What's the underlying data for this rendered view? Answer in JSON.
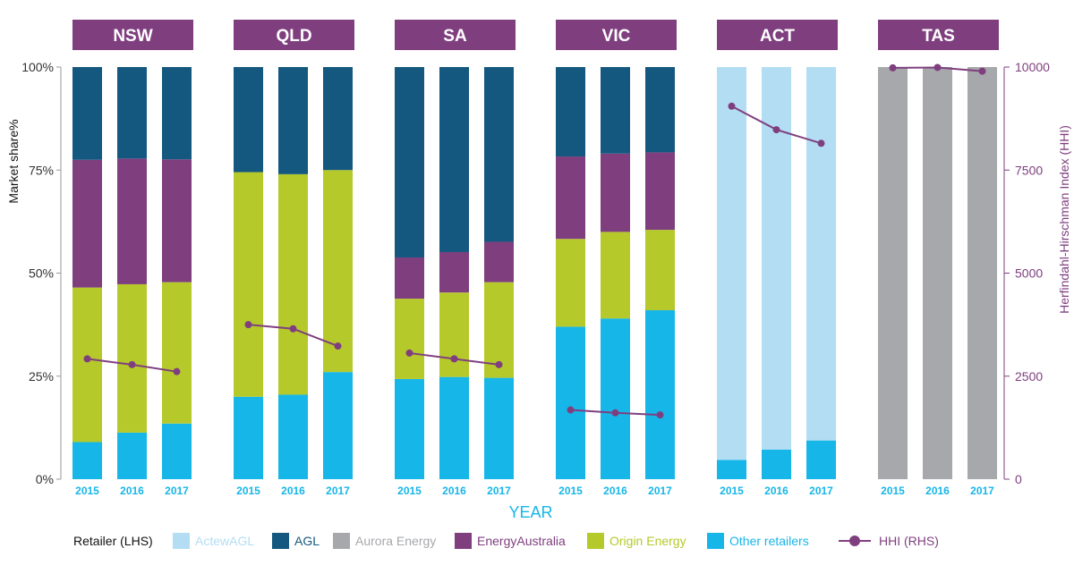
{
  "chart_data": {
    "type": "bar",
    "stacked": true,
    "xlabel": "YEAR",
    "ylabel_left": "Market share%",
    "ylabel_right": "Herfindahl-Hirschman Index (HHI)",
    "ylim_left": [
      0,
      100
    ],
    "ylim_right": [
      0,
      10000
    ],
    "yticks_left": [
      "0%",
      "25%",
      "50%",
      "75%",
      "100%"
    ],
    "yticks_right": [
      "0",
      "2500",
      "5000",
      "7500",
      "10000"
    ],
    "years": [
      "2015",
      "2016",
      "2017"
    ],
    "legend_title": "Retailer (LHS)",
    "series_order": [
      "Other retailers",
      "Origin Energy",
      "EnergyAustralia",
      "AGL",
      "ActewAGL",
      "Aurora Energy"
    ],
    "colors": {
      "ActewAGL": "#b3ddf3",
      "AGL": "#14587f",
      "Aurora Energy": "#a7a8ab",
      "EnergyAustralia": "#7f3f7f",
      "Origin Energy": "#b6c92b",
      "Other retailers": "#17b6e8",
      "HHI": "#7f3f7f",
      "panel_header": "#7f3f7f",
      "axis_label": "#17b6e8"
    },
    "legend": [
      {
        "label": "ActewAGL",
        "type": "box"
      },
      {
        "label": "AGL",
        "type": "box"
      },
      {
        "label": "Aurora Energy",
        "type": "box"
      },
      {
        "label": "EnergyAustralia",
        "type": "box"
      },
      {
        "label": "Origin Energy",
        "type": "box"
      },
      {
        "label": "Other retailers",
        "type": "box"
      },
      {
        "label": "HHI (RHS)",
        "type": "line",
        "key": "HHI"
      }
    ],
    "panels": [
      {
        "name": "NSW",
        "stacks": [
          {
            "Other retailers": 9,
            "Origin Energy": 37.5,
            "EnergyAustralia": 31,
            "AGL": 22.5
          },
          {
            "Other retailers": 11.3,
            "Origin Energy": 36,
            "EnergyAustralia": 30.5,
            "AGL": 22.2
          },
          {
            "Other retailers": 13.5,
            "Origin Energy": 34.3,
            "EnergyAustralia": 29.8,
            "AGL": 22.4
          }
        ],
        "hhi": [
          2920,
          2780,
          2610
        ]
      },
      {
        "name": "QLD",
        "stacks": [
          {
            "Other retailers": 20,
            "Origin Energy": 54.5,
            "AGL": 25.5
          },
          {
            "Other retailers": 20.5,
            "Origin Energy": 53.5,
            "AGL": 26
          },
          {
            "Other retailers": 26,
            "Origin Energy": 49,
            "AGL": 25
          }
        ],
        "hhi": [
          3750,
          3650,
          3230
        ]
      },
      {
        "name": "SA",
        "stacks": [
          {
            "Other retailers": 24.3,
            "Origin Energy": 19.5,
            "EnergyAustralia": 10,
            "AGL": 46.2
          },
          {
            "Other retailers": 24.8,
            "Origin Energy": 20.5,
            "EnergyAustralia": 9.8,
            "AGL": 44.9
          },
          {
            "Other retailers": 24.6,
            "Origin Energy": 23.2,
            "EnergyAustralia": 9.8,
            "AGL": 42.4
          }
        ],
        "hhi": [
          3060,
          2920,
          2780
        ]
      },
      {
        "name": "VIC",
        "stacks": [
          {
            "Other retailers": 37,
            "Origin Energy": 21.3,
            "EnergyAustralia": 20,
            "AGL": 21.7
          },
          {
            "Other retailers": 39,
            "Origin Energy": 21,
            "EnergyAustralia": 19,
            "AGL": 21
          },
          {
            "Other retailers": 41,
            "Origin Energy": 19.5,
            "EnergyAustralia": 18.8,
            "AGL": 20.7
          }
        ],
        "hhi": [
          1680,
          1610,
          1560
        ]
      },
      {
        "name": "ACT",
        "stacks": [
          {
            "Other retailers": 4.7,
            "ActewAGL": 95.3
          },
          {
            "Other retailers": 7.2,
            "ActewAGL": 92.8
          },
          {
            "Other retailers": 9.4,
            "ActewAGL": 90.6
          }
        ],
        "hhi": [
          9050,
          8480,
          8150
        ]
      },
      {
        "name": "TAS",
        "stacks": [
          {
            "Aurora Energy": 100
          },
          {
            "Aurora Energy": 100
          },
          {
            "Aurora Energy": 100
          }
        ],
        "hhi": [
          9980,
          9990,
          9900
        ]
      }
    ]
  }
}
